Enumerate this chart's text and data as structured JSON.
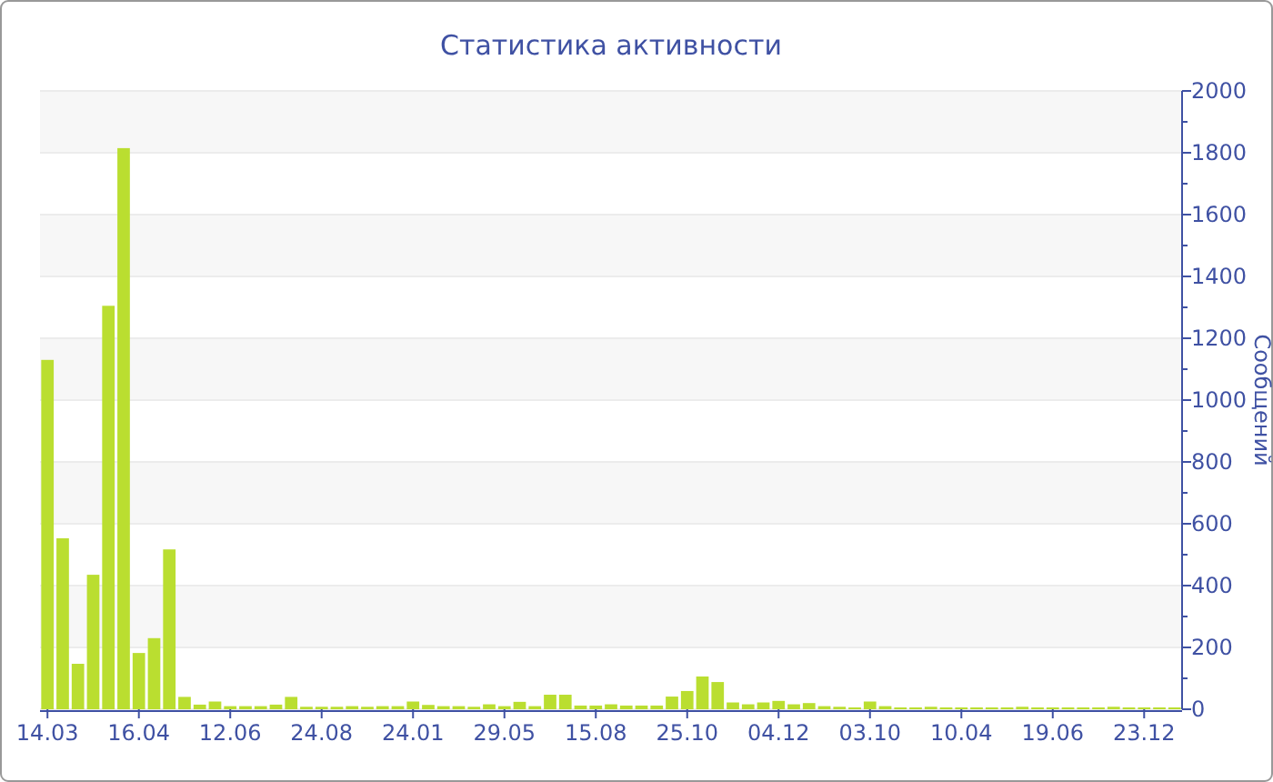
{
  "chart_data": {
    "type": "bar",
    "title": "Статистика активности",
    "ylabel": "Сообщений",
    "categories": [
      "14.03",
      null,
      null,
      null,
      null,
      null,
      "16.04",
      null,
      null,
      null,
      null,
      null,
      "12.06",
      null,
      null,
      null,
      null,
      null,
      "24.08",
      null,
      null,
      null,
      null,
      null,
      "24.01",
      null,
      null,
      null,
      null,
      null,
      "29.05",
      null,
      null,
      null,
      null,
      null,
      "15.08",
      null,
      null,
      null,
      null,
      null,
      "25.10",
      null,
      null,
      null,
      null,
      null,
      "04.12",
      null,
      null,
      null,
      null,
      null,
      "03.10",
      null,
      null,
      null,
      null,
      null,
      "10.04",
      null,
      null,
      null,
      null,
      null,
      "19.06",
      null,
      null,
      null,
      null,
      null,
      "23.12",
      null,
      null
    ],
    "values": [
      1130,
      553,
      147,
      435,
      1305,
      1815,
      182,
      230,
      517,
      40,
      15,
      25,
      10,
      10,
      10,
      15,
      40,
      8,
      8,
      8,
      10,
      8,
      10,
      10,
      25,
      14,
      10,
      10,
      8,
      16,
      10,
      24,
      10,
      47,
      47,
      12,
      12,
      16,
      12,
      12,
      12,
      41,
      59,
      106,
      88,
      22,
      16,
      22,
      27,
      16,
      20,
      10,
      8,
      6,
      25,
      10,
      6,
      6,
      8,
      6,
      6,
      6,
      6,
      6,
      8,
      6,
      6,
      6,
      6,
      6,
      8,
      6,
      6,
      6,
      6
    ],
    "color": "#bade30",
    "ylim": [
      0,
      2000
    ],
    "yticks": [
      0,
      {
        "value": 100,
        "label": null
      },
      200,
      {
        "value": 300,
        "label": null
      },
      400,
      {
        "value": 500,
        "label": null
      },
      600,
      {
        "value": 700,
        "label": null
      },
      800,
      {
        "value": 900,
        "label": null
      },
      1000,
      {
        "value": 1100,
        "label": null
      },
      1200,
      {
        "value": 1300,
        "label": null
      },
      1400,
      {
        "value": 1500,
        "label": null
      },
      1600,
      {
        "value": 1700,
        "label": null
      },
      1800,
      {
        "value": 1900,
        "label": null
      },
      2000
    ],
    "grid": "y"
  }
}
